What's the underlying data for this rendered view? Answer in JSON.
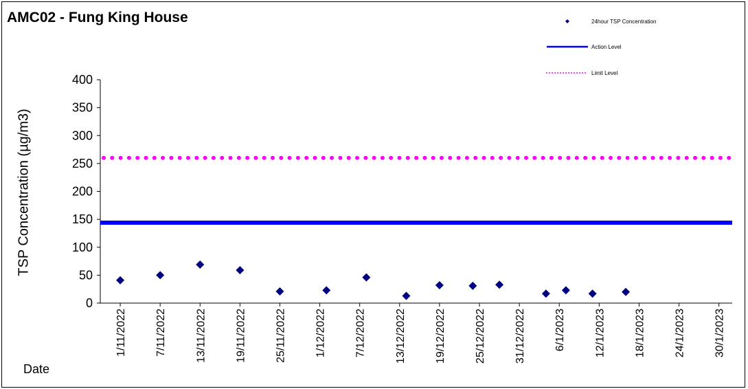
{
  "chart_data": {
    "type": "scatter",
    "title": "AMC02 - Fung King House",
    "xlabel": "Date",
    "ylabel": "TSP Concentration (µg/m3)",
    "ylim": [
      0,
      400
    ],
    "yticks": [
      0,
      50,
      100,
      150,
      200,
      250,
      300,
      350,
      400
    ],
    "xlim": [
      "2022-10-29",
      "2023-02-01"
    ],
    "xticks": [
      "1/11/2022",
      "7/11/2022",
      "13/11/2022",
      "19/11/2022",
      "25/11/2022",
      "1/12/2022",
      "7/12/2022",
      "13/12/2022",
      "19/12/2022",
      "25/12/2022",
      "31/12/2022",
      "6/1/2023",
      "12/1/2023",
      "18/1/2023",
      "24/1/2023",
      "30/1/2023"
    ],
    "grid": false,
    "legend_position": "top-right",
    "series": [
      {
        "name": "24hour TSP Concentration",
        "kind": "scatter",
        "color": "#000080",
        "marker": "diamond",
        "points": [
          {
            "x": "2022-11-01",
            "y": 41
          },
          {
            "x": "2022-11-07",
            "y": 50
          },
          {
            "x": "2022-11-13",
            "y": 69
          },
          {
            "x": "2022-11-19",
            "y": 59
          },
          {
            "x": "2022-11-25",
            "y": 21
          },
          {
            "x": "2022-12-02",
            "y": 23
          },
          {
            "x": "2022-12-08",
            "y": 46
          },
          {
            "x": "2022-12-14",
            "y": 13
          },
          {
            "x": "2022-12-19",
            "y": 32
          },
          {
            "x": "2022-12-24",
            "y": 31
          },
          {
            "x": "2022-12-28",
            "y": 33
          },
          {
            "x": "2023-01-04",
            "y": 17
          },
          {
            "x": "2023-01-07",
            "y": 23
          },
          {
            "x": "2023-01-11",
            "y": 17
          },
          {
            "x": "2023-01-16",
            "y": 20
          }
        ]
      },
      {
        "name": "Action Level",
        "kind": "hline",
        "color": "#0000FF",
        "value": 144
      },
      {
        "name": "Limit Level",
        "kind": "hline",
        "color": "#FF00FF",
        "dash": "dotted",
        "value": 260
      }
    ]
  }
}
